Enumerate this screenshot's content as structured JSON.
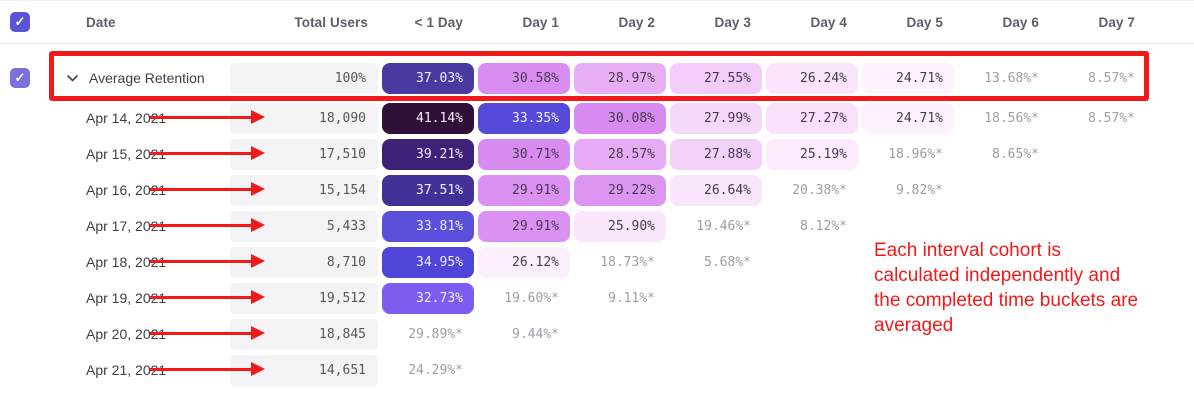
{
  "header": {
    "columns": [
      "Date",
      "Total Users",
      "< 1 Day",
      "Day 1",
      "Day 2",
      "Day 3",
      "Day 4",
      "Day 5",
      "Day 6",
      "Day 7"
    ]
  },
  "average_row": {
    "label": "Average Retention",
    "total": "100%",
    "cells": [
      {
        "t": "37.03%",
        "bg": "#4a3aa0",
        "fg": "#f1effc"
      },
      {
        "t": "30.58%",
        "bg": "#d98df0",
        "fg": "#473b52"
      },
      {
        "t": "28.97%",
        "bg": "#e9aff6",
        "fg": "#473b52"
      },
      {
        "t": "27.55%",
        "bg": "#f3ccf9",
        "fg": "#473b52"
      },
      {
        "t": "26.24%",
        "bg": "#fbe5fc",
        "fg": "#473b52"
      },
      {
        "t": "24.71%",
        "bg": "#fdf1fd",
        "fg": "#473b52"
      },
      {
        "t": "13.68%*"
      },
      {
        "t": "8.57%*"
      }
    ]
  },
  "rows": [
    {
      "date": "Apr 14, 2021",
      "total": "18,090",
      "cells": [
        {
          "t": "41.14%",
          "bg": "#2f1039",
          "fg": "#f1effc"
        },
        {
          "t": "33.35%",
          "bg": "#5549da",
          "fg": "#f1effc"
        },
        {
          "t": "30.08%",
          "bg": "#d78aef",
          "fg": "#473b52"
        },
        {
          "t": "27.99%",
          "bg": "#f6d8fa",
          "fg": "#473b52"
        },
        {
          "t": "27.27%",
          "bg": "#f9e0fb",
          "fg": "#473b52"
        },
        {
          "t": "24.71%",
          "bg": "#fdf1fd",
          "fg": "#473b52"
        },
        {
          "t": "18.56%*"
        },
        {
          "t": "8.57%*"
        }
      ]
    },
    {
      "date": "Apr 15, 2021",
      "total": "17,510",
      "cells": [
        {
          "t": "39.21%",
          "bg": "#3d2178",
          "fg": "#f1effc"
        },
        {
          "t": "30.71%",
          "bg": "#d88cf0",
          "fg": "#473b52"
        },
        {
          "t": "28.57%",
          "bg": "#e7aaf5",
          "fg": "#473b52"
        },
        {
          "t": "27.88%",
          "bg": "#f4d1f9",
          "fg": "#473b52"
        },
        {
          "t": "25.19%",
          "bg": "#fcebfd",
          "fg": "#473b52"
        },
        {
          "t": "18.96%*"
        },
        {
          "t": "8.65%*"
        }
      ]
    },
    {
      "date": "Apr 16, 2021",
      "total": "15,154",
      "cells": [
        {
          "t": "37.51%",
          "bg": "#453097",
          "fg": "#f1effc"
        },
        {
          "t": "29.91%",
          "bg": "#da91f1",
          "fg": "#473b52"
        },
        {
          "t": "29.22%",
          "bg": "#dc96f2",
          "fg": "#473b52"
        },
        {
          "t": "26.64%",
          "bg": "#fae6fc",
          "fg": "#473b52"
        },
        {
          "t": "20.38%*"
        },
        {
          "t": "9.82%*"
        }
      ]
    },
    {
      "date": "Apr 17, 2021",
      "total": "5,433",
      "cells": [
        {
          "t": "33.81%",
          "bg": "#5a50dc",
          "fg": "#f1effc"
        },
        {
          "t": "29.91%",
          "bg": "#da91f1",
          "fg": "#473b52"
        },
        {
          "t": "25.90%",
          "bg": "#fbe7fc",
          "fg": "#473b52"
        },
        {
          "t": "19.46%*"
        },
        {
          "t": "8.12%*"
        }
      ]
    },
    {
      "date": "Apr 18, 2021",
      "total": "8,710",
      "cells": [
        {
          "t": "34.95%",
          "bg": "#4f45d9",
          "fg": "#f1effc"
        },
        {
          "t": "26.12%",
          "bg": "#fceffd",
          "fg": "#473b52"
        },
        {
          "t": "18.73%*"
        },
        {
          "t": "5.68%*"
        }
      ]
    },
    {
      "date": "Apr 19, 2021",
      "total": "19,512",
      "cells": [
        {
          "t": "32.73%",
          "bg": "#7d5cf0",
          "fg": "#f1effc"
        },
        {
          "t": "19.60%*"
        },
        {
          "t": "9.11%*"
        }
      ]
    },
    {
      "date": "Apr 20, 2021",
      "total": "18,845",
      "cells": [
        {
          "t": "29.89%*"
        },
        {
          "t": "9.44%*"
        }
      ]
    },
    {
      "date": "Apr 21, 2021",
      "total": "14,651",
      "cells": [
        {
          "t": "24.29%*"
        }
      ]
    }
  ],
  "annotation": {
    "note": "Each interval cohort is\ncalculated independently and\nthe completed time buckets are\naveraged",
    "color": "#f01a1a"
  },
  "icons": {
    "check": "✓"
  },
  "colors": {
    "checkbox_purple": "#5b54d6",
    "avg_checkbox_purple": "#7b71dd",
    "pill_gray": "#f3f3f5",
    "annotation_red": "#f01a1a",
    "muted_value_gray": "#9d9ea6"
  }
}
